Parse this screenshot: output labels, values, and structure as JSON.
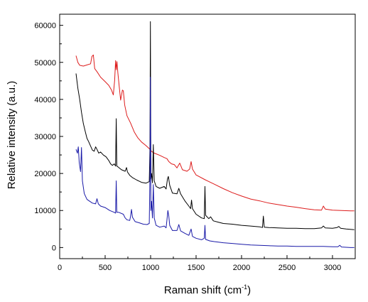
{
  "chart_data": {
    "type": "line",
    "xlabel": "Raman shift (cm",
    "xlabel_sup": "-1",
    "xlabel_suffix": ")",
    "ylabel": "Relative intensity (a.u.)",
    "xlim": [
      0,
      3250
    ],
    "ylim": [
      -3000,
      63000
    ],
    "x_ticks": [
      0,
      500,
      1000,
      1500,
      2000,
      2500,
      3000
    ],
    "x_tick_labels": [
      "0",
      "500",
      "1000",
      "1500",
      "2000",
      "2500",
      "3000"
    ],
    "y_ticks": [
      0,
      10000,
      20000,
      30000,
      40000,
      50000,
      60000
    ],
    "y_tick_labels": [
      "0",
      "10000",
      "20000",
      "30000",
      "40000",
      "50000",
      "60000"
    ],
    "grid": false,
    "legend": "none",
    "series": [
      {
        "color": "#dd1c1c",
        "points": [
          [
            180,
            51800
          ],
          [
            200,
            50000
          ],
          [
            220,
            49200
          ],
          [
            260,
            49000
          ],
          [
            300,
            49300
          ],
          [
            340,
            49600
          ],
          [
            355,
            51600
          ],
          [
            370,
            52000
          ],
          [
            385,
            48300
          ],
          [
            410,
            47500
          ],
          [
            450,
            46000
          ],
          [
            500,
            44800
          ],
          [
            540,
            43800
          ],
          [
            570,
            42500
          ],
          [
            590,
            41200
          ],
          [
            605,
            45200
          ],
          [
            615,
            50500
          ],
          [
            622,
            48000
          ],
          [
            630,
            50200
          ],
          [
            640,
            47200
          ],
          [
            655,
            43500
          ],
          [
            670,
            39800
          ],
          [
            690,
            42500
          ],
          [
            700,
            42300
          ],
          [
            715,
            38500
          ],
          [
            740,
            35600
          ],
          [
            780,
            33600
          ],
          [
            820,
            31200
          ],
          [
            860,
            29600
          ],
          [
            900,
            28500
          ],
          [
            950,
            27500
          ],
          [
            990,
            26600
          ],
          [
            1000,
            26200
          ],
          [
            1030,
            25600
          ],
          [
            1060,
            25300
          ],
          [
            1100,
            24900
          ],
          [
            1150,
            24300
          ],
          [
            1180,
            24000
          ],
          [
            1200,
            23200
          ],
          [
            1230,
            22600
          ],
          [
            1260,
            22400
          ],
          [
            1290,
            21500
          ],
          [
            1320,
            22800
          ],
          [
            1350,
            21000
          ],
          [
            1400,
            20600
          ],
          [
            1430,
            21200
          ],
          [
            1445,
            23200
          ],
          [
            1460,
            21200
          ],
          [
            1500,
            19600
          ],
          [
            1600,
            18300
          ],
          [
            1700,
            17100
          ],
          [
            1800,
            15900
          ],
          [
            1900,
            14800
          ],
          [
            2000,
            13900
          ],
          [
            2100,
            13100
          ],
          [
            2200,
            12600
          ],
          [
            2300,
            12000
          ],
          [
            2400,
            11600
          ],
          [
            2500,
            11200
          ],
          [
            2600,
            10900
          ],
          [
            2700,
            10500
          ],
          [
            2800,
            10200
          ],
          [
            2880,
            10100
          ],
          [
            2900,
            11200
          ],
          [
            2920,
            10400
          ],
          [
            3000,
            10100
          ],
          [
            3100,
            10000
          ],
          [
            3200,
            9900
          ],
          [
            3240,
            9900
          ]
        ]
      },
      {
        "color": "#000000",
        "points": [
          [
            180,
            47000
          ],
          [
            200,
            43000
          ],
          [
            220,
            40000
          ],
          [
            240,
            36500
          ],
          [
            260,
            33500
          ],
          [
            280,
            31500
          ],
          [
            300,
            29500
          ],
          [
            320,
            28500
          ],
          [
            340,
            27400
          ],
          [
            360,
            26300
          ],
          [
            380,
            26000
          ],
          [
            395,
            27200
          ],
          [
            410,
            26500
          ],
          [
            430,
            25500
          ],
          [
            450,
            25800
          ],
          [
            480,
            25000
          ],
          [
            510,
            24500
          ],
          [
            540,
            23500
          ],
          [
            560,
            22600
          ],
          [
            580,
            22200
          ],
          [
            600,
            22600
          ],
          [
            615,
            22000
          ],
          [
            622,
            34800
          ],
          [
            628,
            22000
          ],
          [
            640,
            21800
          ],
          [
            680,
            21000
          ],
          [
            720,
            20600
          ],
          [
            735,
            21600
          ],
          [
            745,
            20400
          ],
          [
            770,
            19500
          ],
          [
            800,
            18900
          ],
          [
            850,
            18200
          ],
          [
            900,
            17600
          ],
          [
            950,
            17400
          ],
          [
            985,
            17800
          ],
          [
            993,
            27000
          ],
          [
            998,
            61000
          ],
          [
            1003,
            18500
          ],
          [
            1010,
            20000
          ],
          [
            1020,
            17500
          ],
          [
            1030,
            27800
          ],
          [
            1040,
            18000
          ],
          [
            1060,
            16500
          ],
          [
            1100,
            16000
          ],
          [
            1150,
            16500
          ],
          [
            1170,
            15800
          ],
          [
            1185,
            18500
          ],
          [
            1195,
            19200
          ],
          [
            1210,
            16800
          ],
          [
            1240,
            14700
          ],
          [
            1290,
            14500
          ],
          [
            1310,
            16000
          ],
          [
            1330,
            14500
          ],
          [
            1380,
            12500
          ],
          [
            1420,
            11200
          ],
          [
            1440,
            10500
          ],
          [
            1450,
            12800
          ],
          [
            1460,
            10500
          ],
          [
            1500,
            9000
          ],
          [
            1560,
            8000
          ],
          [
            1590,
            7800
          ],
          [
            1598,
            16500
          ],
          [
            1605,
            8700
          ],
          [
            1640,
            7800
          ],
          [
            1660,
            8300
          ],
          [
            1690,
            7200
          ],
          [
            1750,
            6800
          ],
          [
            1800,
            6500
          ],
          [
            1900,
            6300
          ],
          [
            2000,
            6000
          ],
          [
            2100,
            5800
          ],
          [
            2200,
            5600
          ],
          [
            2230,
            5400
          ],
          [
            2240,
            8500
          ],
          [
            2250,
            5500
          ],
          [
            2300,
            5400
          ],
          [
            2400,
            5300
          ],
          [
            2500,
            5200
          ],
          [
            2600,
            5200
          ],
          [
            2700,
            5100
          ],
          [
            2800,
            5100
          ],
          [
            2880,
            5300
          ],
          [
            2900,
            5800
          ],
          [
            2920,
            5300
          ],
          [
            3000,
            5200
          ],
          [
            3050,
            5400
          ],
          [
            3070,
            5700
          ],
          [
            3090,
            5200
          ],
          [
            3150,
            5000
          ],
          [
            3240,
            4800
          ]
        ]
      },
      {
        "color": "#1a1aa8",
        "points": [
          [
            180,
            26500
          ],
          [
            195,
            25500
          ],
          [
            205,
            27200
          ],
          [
            215,
            23000
          ],
          [
            230,
            20500
          ],
          [
            240,
            27000
          ],
          [
            250,
            18000
          ],
          [
            270,
            14600
          ],
          [
            300,
            13000
          ],
          [
            330,
            12500
          ],
          [
            360,
            12000
          ],
          [
            395,
            11800
          ],
          [
            410,
            13200
          ],
          [
            425,
            11800
          ],
          [
            450,
            11200
          ],
          [
            500,
            10800
          ],
          [
            550,
            10000
          ],
          [
            600,
            9500
          ],
          [
            615,
            9300
          ],
          [
            622,
            18000
          ],
          [
            628,
            9500
          ],
          [
            650,
            9500
          ],
          [
            700,
            9000
          ],
          [
            720,
            8000
          ],
          [
            740,
            7500
          ],
          [
            770,
            7300
          ],
          [
            780,
            8500
          ],
          [
            790,
            10300
          ],
          [
            800,
            8200
          ],
          [
            830,
            7000
          ],
          [
            870,
            6700
          ],
          [
            920,
            6300
          ],
          [
            960,
            6200
          ],
          [
            985,
            6500
          ],
          [
            993,
            20000
          ],
          [
            998,
            46000
          ],
          [
            1003,
            10000
          ],
          [
            1010,
            12500
          ],
          [
            1020,
            8000
          ],
          [
            1030,
            17000
          ],
          [
            1040,
            8000
          ],
          [
            1060,
            6000
          ],
          [
            1100,
            5500
          ],
          [
            1150,
            5800
          ],
          [
            1170,
            5300
          ],
          [
            1180,
            7500
          ],
          [
            1190,
            10000
          ],
          [
            1200,
            8500
          ],
          [
            1210,
            6000
          ],
          [
            1240,
            4600
          ],
          [
            1290,
            4600
          ],
          [
            1310,
            6200
          ],
          [
            1330,
            4500
          ],
          [
            1380,
            3800
          ],
          [
            1420,
            3300
          ],
          [
            1445,
            5000
          ],
          [
            1460,
            3000
          ],
          [
            1500,
            2500
          ],
          [
            1560,
            2100
          ],
          [
            1590,
            2500
          ],
          [
            1598,
            6000
          ],
          [
            1605,
            2200
          ],
          [
            1650,
            1800
          ],
          [
            1700,
            1600
          ],
          [
            1800,
            1300
          ],
          [
            1900,
            1100
          ],
          [
            2000,
            900
          ],
          [
            2100,
            700
          ],
          [
            2200,
            600
          ],
          [
            2300,
            500
          ],
          [
            2400,
            400
          ],
          [
            2500,
            400
          ],
          [
            2600,
            300
          ],
          [
            2700,
            300
          ],
          [
            2800,
            300
          ],
          [
            2900,
            300
          ],
          [
            3000,
            200
          ],
          [
            3060,
            200
          ],
          [
            3080,
            600
          ],
          [
            3100,
            150
          ],
          [
            3200,
            0
          ],
          [
            3240,
            0
          ]
        ]
      }
    ]
  }
}
